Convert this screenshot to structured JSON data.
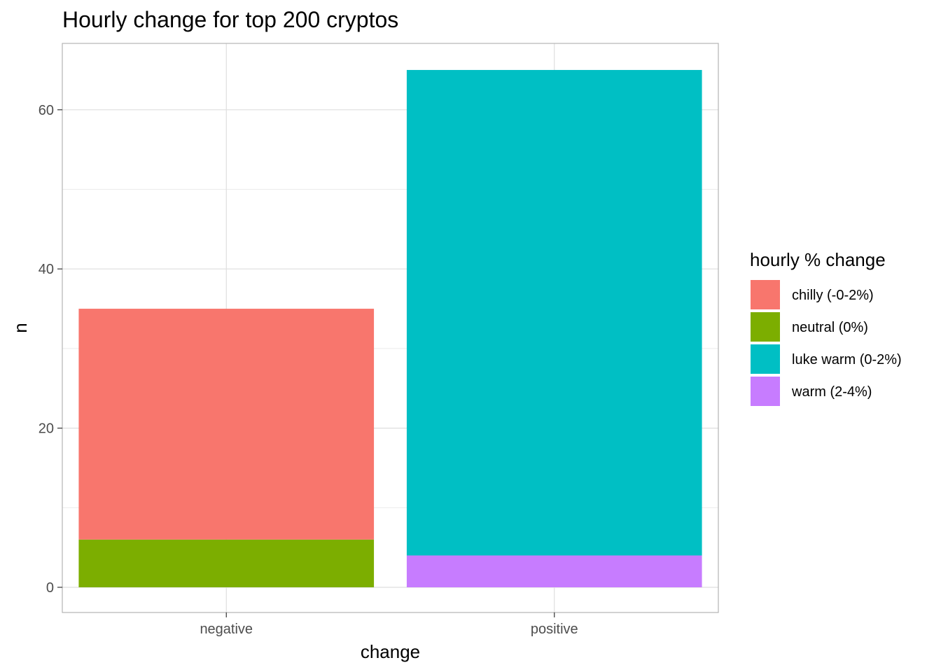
{
  "chart_data": {
    "type": "bar",
    "stacked": true,
    "title": "Hourly change for top 200 cryptos",
    "xlabel": "change",
    "ylabel": "n",
    "categories": [
      "negative",
      "positive"
    ],
    "ylim": [
      0,
      65
    ],
    "y_ticks": [
      0,
      20,
      40,
      60
    ],
    "grid": true,
    "legend": {
      "title": "hourly % change",
      "position": "right"
    },
    "series": [
      {
        "name": "chilly (-0-2%)",
        "color": "#F8766D",
        "values": [
          29,
          0
        ]
      },
      {
        "name": "neutral (0%)",
        "color": "#7CAE00",
        "values": [
          6,
          0
        ]
      },
      {
        "name": "luke warm (0-2%)",
        "color": "#00BFC4",
        "values": [
          0,
          61
        ]
      },
      {
        "name": "warm (2-4%)",
        "color": "#C77CFF",
        "values": [
          0,
          4
        ]
      }
    ],
    "stack_order_bottom_to_top": [
      "warm (2-4%)",
      "luke warm (0-2%)",
      "neutral (0%)",
      "chilly (-0-2%)"
    ]
  }
}
